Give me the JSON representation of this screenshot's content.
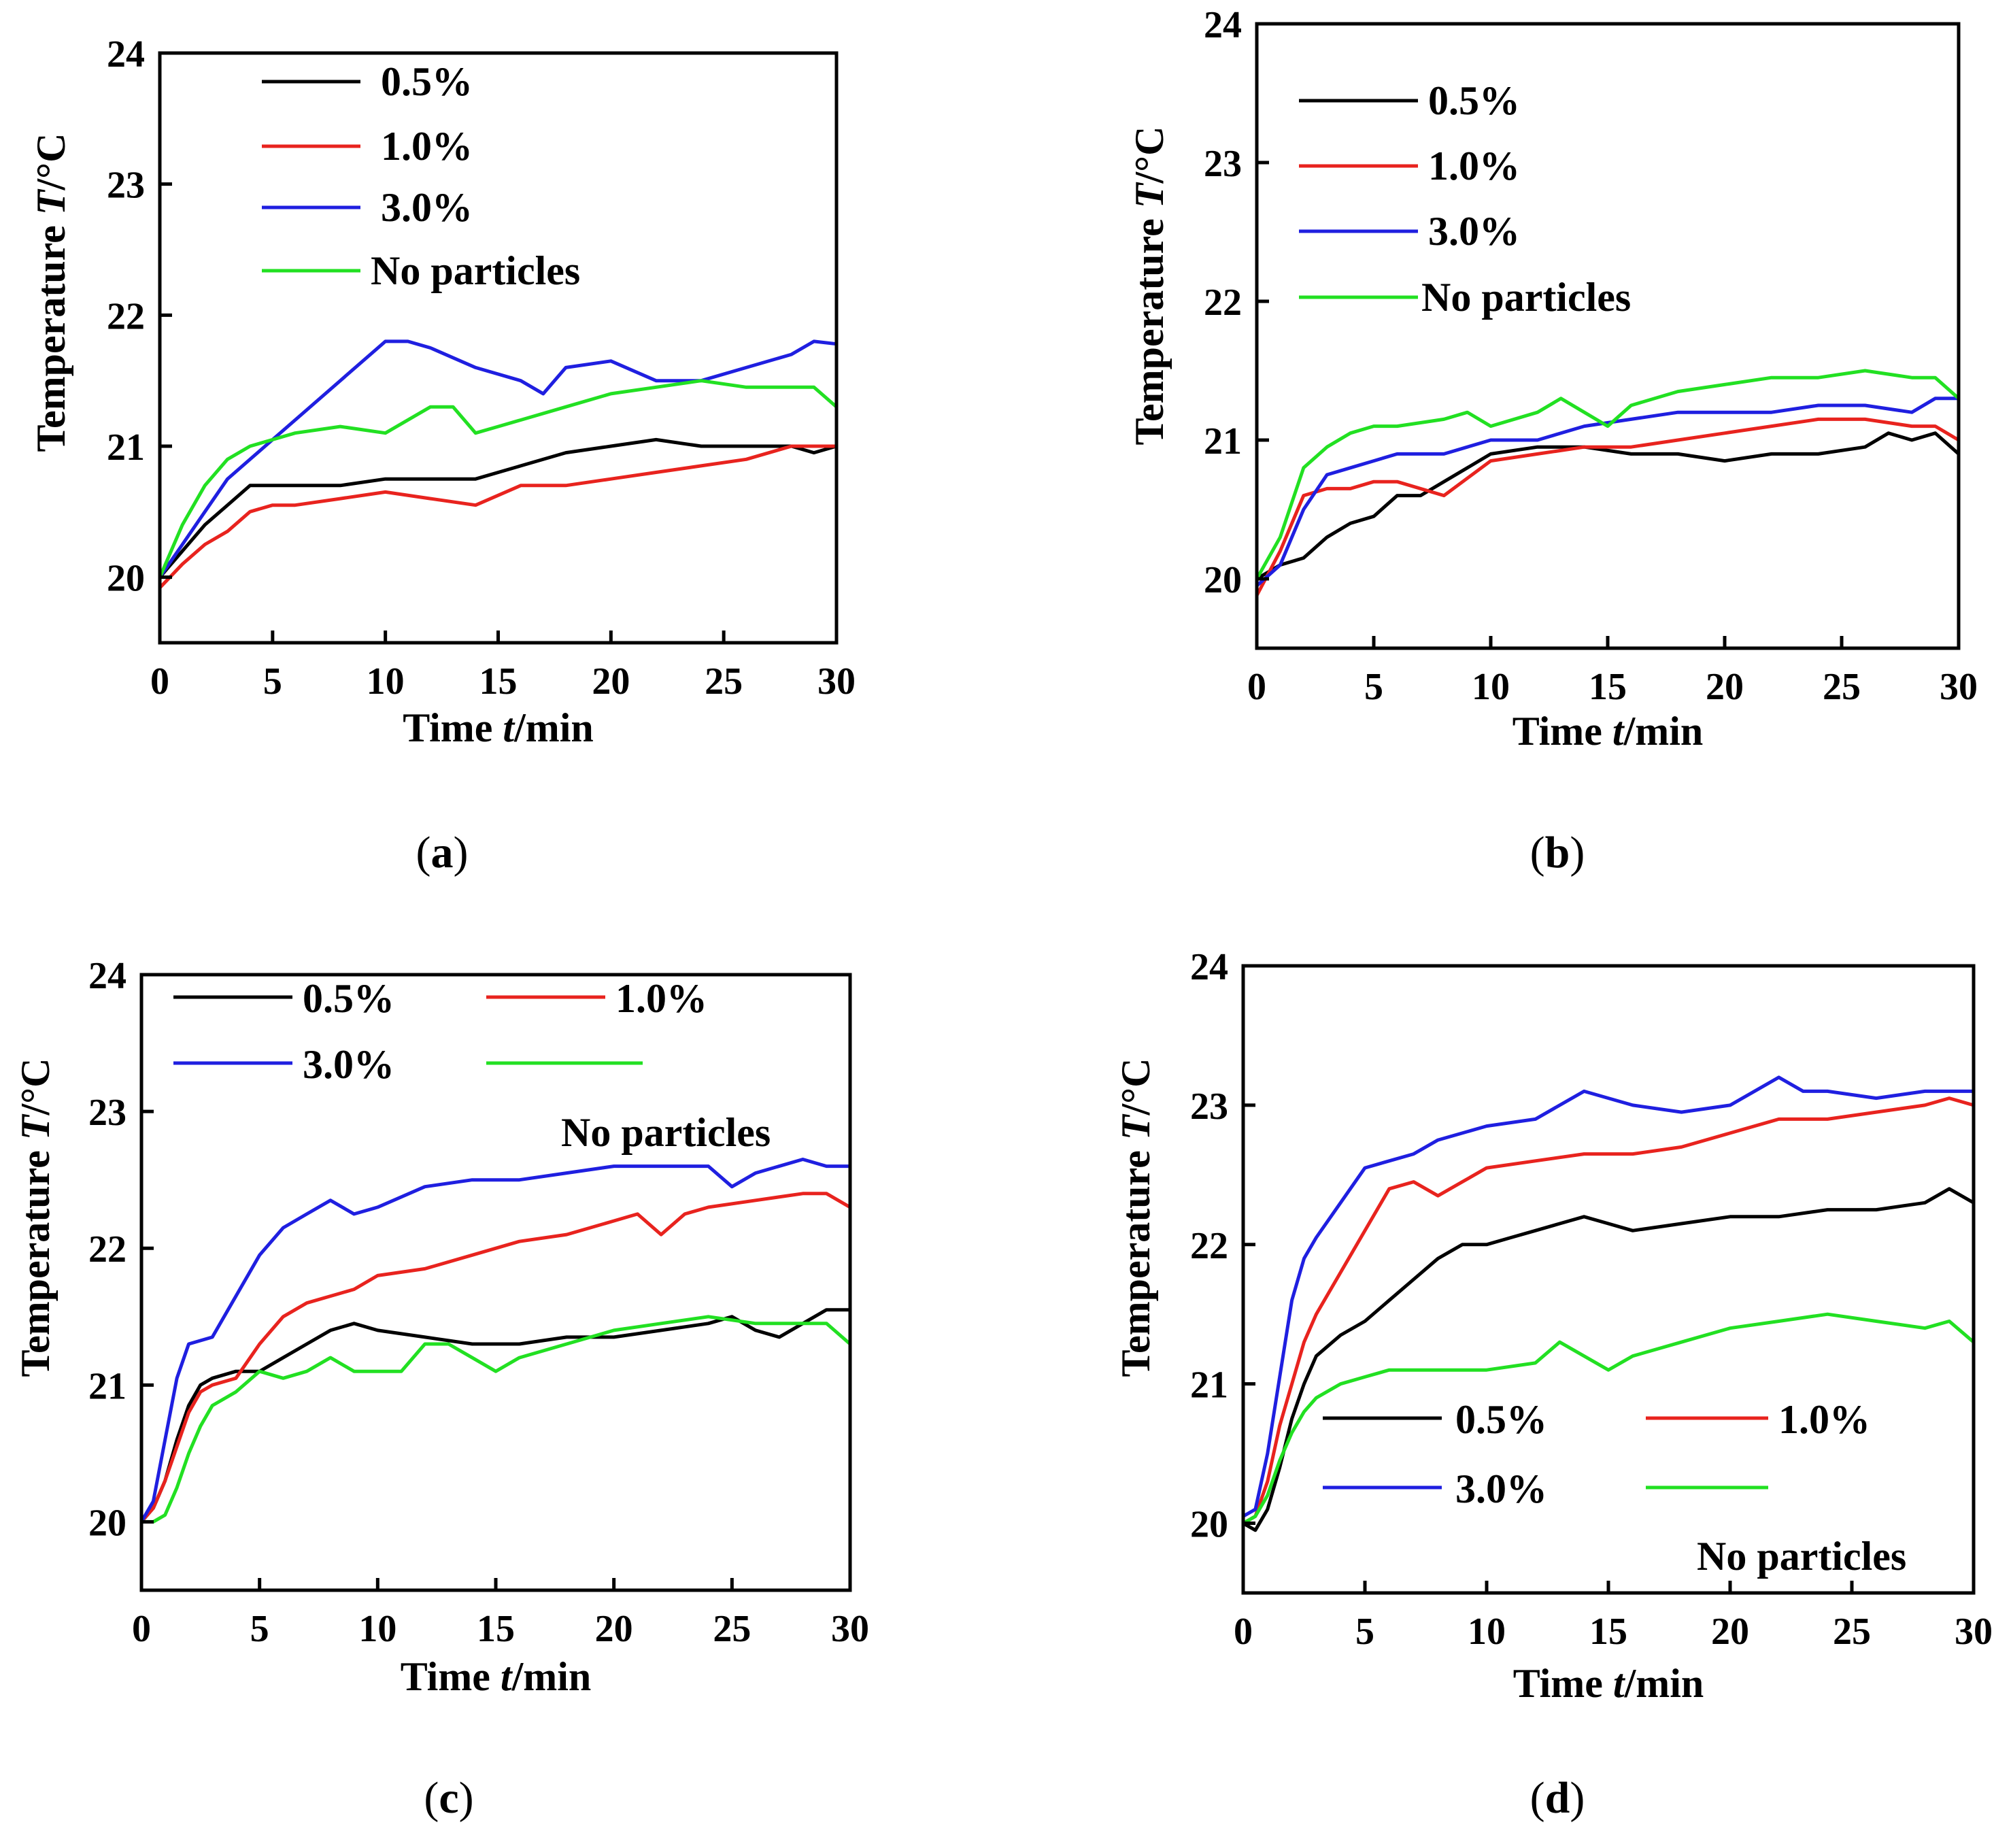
{
  "colors": {
    "0.5%": "#000000",
    "1.0%": "#e8231e",
    "3.0%": "#1f1fe0",
    "No particles": "#22e022"
  },
  "chart_data": [
    {
      "type": "line",
      "panel_label": "(a)",
      "title": "",
      "xlabel_main": "Time ",
      "xlabel_var": "t",
      "xlabel_unit": "/min",
      "ylabel_main": "Temperature ",
      "ylabel_var": "T",
      "ylabel_unit": "/°C",
      "xlim": [
        0,
        30
      ],
      "ylim": [
        19.5,
        24
      ],
      "xticks": [
        0,
        5,
        10,
        15,
        20,
        25,
        30
      ],
      "yticks": [
        20,
        21,
        22,
        23,
        24
      ],
      "legend_layout": "top-left, single column",
      "series": [
        {
          "name": "0.5%",
          "color": "#000000",
          "x": [
            0,
            1,
            2,
            3,
            4,
            5,
            6,
            8,
            10,
            12,
            14,
            16,
            18,
            20,
            22,
            24,
            26,
            28,
            29,
            30
          ],
          "y": [
            20.0,
            20.2,
            20.4,
            20.55,
            20.7,
            20.7,
            20.7,
            20.7,
            20.75,
            20.75,
            20.75,
            20.85,
            20.95,
            21.0,
            21.05,
            21.0,
            21.0,
            21.0,
            20.95,
            21.0
          ]
        },
        {
          "name": "1.0%",
          "color": "#e8231e",
          "x": [
            0,
            1,
            2,
            3,
            4,
            5,
            6,
            8,
            10,
            12,
            14,
            16,
            18,
            20,
            22,
            24,
            26,
            28,
            29,
            30
          ],
          "y": [
            19.92,
            20.1,
            20.25,
            20.35,
            20.5,
            20.55,
            20.55,
            20.6,
            20.65,
            20.6,
            20.55,
            20.7,
            20.7,
            20.75,
            20.8,
            20.85,
            20.9,
            21.0,
            21.0,
            21.0
          ]
        },
        {
          "name": "3.0%",
          "color": "#1f1fe0",
          "x": [
            0,
            1,
            2,
            3,
            4,
            5,
            6,
            8,
            10,
            11,
            12,
            14,
            16,
            17,
            18,
            20,
            22,
            24,
            26,
            28,
            29,
            30
          ],
          "y": [
            20.0,
            20.25,
            20.5,
            20.75,
            20.9,
            21.05,
            21.2,
            21.5,
            21.8,
            21.8,
            21.75,
            21.6,
            21.5,
            21.4,
            21.6,
            21.65,
            21.5,
            21.5,
            21.6,
            21.7,
            21.8,
            21.78
          ]
        },
        {
          "name": "No particles",
          "color": "#22e022",
          "x": [
            0,
            1,
            2,
            3,
            4,
            5,
            6,
            8,
            10,
            12,
            13,
            14,
            15,
            16,
            18,
            20,
            22,
            24,
            26,
            28,
            29,
            30
          ],
          "y": [
            20.0,
            20.4,
            20.7,
            20.9,
            21.0,
            21.05,
            21.1,
            21.15,
            21.1,
            21.3,
            21.3,
            21.1,
            21.15,
            21.2,
            21.3,
            21.4,
            21.45,
            21.5,
            21.45,
            21.45,
            21.45,
            21.3
          ]
        }
      ]
    },
    {
      "type": "line",
      "panel_label": "(b)",
      "title": "",
      "xlabel_main": "Time ",
      "xlabel_var": "t",
      "xlabel_unit": "/min",
      "ylabel_main": "Temperature ",
      "ylabel_var": "T",
      "ylabel_unit": "/°C",
      "xlim": [
        0,
        30
      ],
      "ylim": [
        19.5,
        24
      ],
      "xticks": [
        0,
        5,
        10,
        15,
        20,
        25,
        30
      ],
      "yticks": [
        20,
        21,
        22,
        23,
        24
      ],
      "legend_layout": "top-left, single column",
      "series": [
        {
          "name": "0.5%",
          "color": "#000000",
          "x": [
            0,
            1,
            2,
            3,
            4,
            5,
            6,
            7,
            8,
            9,
            10,
            12,
            14,
            16,
            18,
            20,
            22,
            24,
            26,
            27,
            28,
            29,
            30
          ],
          "y": [
            20.0,
            20.1,
            20.15,
            20.3,
            20.4,
            20.45,
            20.6,
            20.6,
            20.7,
            20.8,
            20.9,
            20.95,
            20.95,
            20.9,
            20.9,
            20.85,
            20.9,
            20.9,
            20.95,
            21.05,
            21.0,
            21.05,
            20.9
          ]
        },
        {
          "name": "1.0%",
          "color": "#e8231e",
          "x": [
            0,
            1,
            2,
            3,
            4,
            5,
            6,
            8,
            10,
            12,
            14,
            16,
            18,
            20,
            22,
            24,
            26,
            28,
            29,
            30
          ],
          "y": [
            19.88,
            20.2,
            20.6,
            20.65,
            20.65,
            20.7,
            20.7,
            20.6,
            20.85,
            20.9,
            20.95,
            20.95,
            21.0,
            21.05,
            21.1,
            21.15,
            21.15,
            21.1,
            21.1,
            21.0
          ]
        },
        {
          "name": "3.0%",
          "color": "#1f1fe0",
          "x": [
            0,
            1,
            2,
            3,
            4,
            5,
            6,
            8,
            9,
            10,
            12,
            14,
            16,
            18,
            20,
            22,
            24,
            26,
            28,
            29,
            30
          ],
          "y": [
            19.95,
            20.1,
            20.5,
            20.75,
            20.8,
            20.85,
            20.9,
            20.9,
            20.95,
            21.0,
            21.0,
            21.1,
            21.15,
            21.2,
            21.2,
            21.2,
            21.25,
            21.25,
            21.2,
            21.3,
            21.3
          ]
        },
        {
          "name": "No particles",
          "color": "#22e022",
          "x": [
            0,
            1,
            2,
            3,
            4,
            5,
            6,
            8,
            9,
            10,
            12,
            13,
            14,
            15,
            16,
            18,
            20,
            22,
            24,
            26,
            28,
            29,
            30
          ],
          "y": [
            20.0,
            20.3,
            20.8,
            20.95,
            21.05,
            21.1,
            21.1,
            21.15,
            21.2,
            21.1,
            21.2,
            21.3,
            21.2,
            21.1,
            21.25,
            21.35,
            21.4,
            21.45,
            21.45,
            21.5,
            21.45,
            21.45,
            21.3
          ]
        }
      ]
    },
    {
      "type": "line",
      "panel_label": "(c)",
      "title": "",
      "xlabel_main": "Time ",
      "xlabel_var": "t",
      "xlabel_unit": "/min",
      "ylabel_main": "Temperature ",
      "ylabel_var": "T",
      "ylabel_unit": "/°C",
      "xlim": [
        0,
        30
      ],
      "ylim": [
        19.5,
        24
      ],
      "xticks": [
        0,
        5,
        10,
        15,
        20,
        25,
        30
      ],
      "yticks": [
        20,
        21,
        22,
        23,
        24
      ],
      "legend_layout": "top, two columns",
      "series": [
        {
          "name": "0.5%",
          "color": "#000000",
          "x": [
            0,
            0.5,
            1,
            1.5,
            2,
            2.5,
            3,
            4,
            5,
            6,
            7,
            8,
            9,
            10,
            12,
            14,
            16,
            18,
            20,
            22,
            24,
            25,
            26,
            27,
            28,
            29,
            30
          ],
          "y": [
            20.0,
            20.1,
            20.3,
            20.6,
            20.85,
            21.0,
            21.05,
            21.1,
            21.1,
            21.2,
            21.3,
            21.4,
            21.45,
            21.4,
            21.35,
            21.3,
            21.3,
            21.35,
            21.35,
            21.4,
            21.45,
            21.5,
            21.4,
            21.35,
            21.45,
            21.55,
            21.55
          ]
        },
        {
          "name": "1.0%",
          "color": "#e8231e",
          "x": [
            0,
            0.5,
            1,
            1.5,
            2,
            2.5,
            3,
            4,
            5,
            6,
            7,
            8,
            9,
            10,
            12,
            14,
            16,
            18,
            20,
            21,
            22,
            23,
            24,
            26,
            28,
            29,
            30
          ],
          "y": [
            20.0,
            20.1,
            20.3,
            20.55,
            20.8,
            20.95,
            21.0,
            21.05,
            21.3,
            21.5,
            21.6,
            21.65,
            21.7,
            21.8,
            21.85,
            21.95,
            22.05,
            22.1,
            22.2,
            22.25,
            22.1,
            22.25,
            22.3,
            22.35,
            22.4,
            22.4,
            22.3
          ]
        },
        {
          "name": "3.0%",
          "color": "#1f1fe0",
          "x": [
            0,
            0.5,
            1,
            1.5,
            2,
            3,
            4,
            5,
            6,
            7,
            8,
            9,
            10,
            12,
            14,
            16,
            18,
            20,
            22,
            24,
            25,
            26,
            28,
            29,
            30
          ],
          "y": [
            20.0,
            20.15,
            20.6,
            21.05,
            21.3,
            21.35,
            21.65,
            21.95,
            22.15,
            22.25,
            22.35,
            22.25,
            22.3,
            22.45,
            22.5,
            22.5,
            22.55,
            22.6,
            22.6,
            22.6,
            22.45,
            22.55,
            22.65,
            22.6,
            22.6
          ]
        },
        {
          "name": "No particles",
          "color": "#22e022",
          "x": [
            0,
            0.5,
            1,
            1.5,
            2,
            2.5,
            3,
            4,
            5,
            6,
            7,
            8,
            9,
            10,
            11,
            12,
            13,
            14,
            15,
            16,
            18,
            20,
            22,
            24,
            26,
            28,
            29,
            30
          ],
          "y": [
            20.0,
            20.0,
            20.05,
            20.25,
            20.5,
            20.7,
            20.85,
            20.95,
            21.1,
            21.05,
            21.1,
            21.2,
            21.1,
            21.1,
            21.1,
            21.3,
            21.3,
            21.2,
            21.1,
            21.2,
            21.3,
            21.4,
            21.45,
            21.5,
            21.45,
            21.45,
            21.45,
            21.3
          ]
        }
      ]
    },
    {
      "type": "line",
      "panel_label": "(d)",
      "title": "",
      "xlabel_main": "Time ",
      "xlabel_var": "t",
      "xlabel_unit": "/min",
      "ylabel_main": "Temperature ",
      "ylabel_var": "T",
      "ylabel_unit": "/°C",
      "xlim": [
        0,
        30
      ],
      "ylim": [
        19.5,
        24
      ],
      "xticks": [
        0,
        5,
        10,
        15,
        20,
        25,
        30
      ],
      "yticks": [
        20,
        21,
        22,
        23,
        24
      ],
      "legend_layout": "bottom, two columns",
      "series": [
        {
          "name": "0.5%",
          "color": "#000000",
          "x": [
            0,
            0.5,
            1,
            1.5,
            2,
            2.5,
            3,
            4,
            5,
            6,
            7,
            8,
            9,
            10,
            11,
            12,
            13,
            14,
            15,
            16,
            18,
            20,
            22,
            24,
            26,
            28,
            29,
            30
          ],
          "y": [
            20.0,
            19.95,
            20.1,
            20.4,
            20.75,
            21.0,
            21.2,
            21.35,
            21.45,
            21.6,
            21.75,
            21.9,
            22.0,
            22.0,
            22.05,
            22.1,
            22.15,
            22.2,
            22.15,
            22.1,
            22.15,
            22.2,
            22.2,
            22.25,
            22.25,
            22.3,
            22.4,
            22.3
          ]
        },
        {
          "name": "1.0%",
          "color": "#e8231e",
          "x": [
            0,
            0.5,
            1,
            1.5,
            2,
            2.5,
            3,
            4,
            5,
            6,
            7,
            8,
            9,
            10,
            12,
            14,
            16,
            18,
            20,
            22,
            24,
            26,
            28,
            29,
            30
          ],
          "y": [
            20.0,
            20.05,
            20.3,
            20.7,
            21.0,
            21.3,
            21.5,
            21.8,
            22.1,
            22.4,
            22.45,
            22.35,
            22.45,
            22.55,
            22.6,
            22.65,
            22.65,
            22.7,
            22.8,
            22.9,
            22.9,
            22.95,
            23.0,
            23.05,
            23.0
          ]
        },
        {
          "name": "3.0%",
          "color": "#1f1fe0",
          "x": [
            0,
            0.5,
            1,
            1.5,
            2,
            2.5,
            3,
            4,
            5,
            6,
            7,
            8,
            9,
            10,
            12,
            14,
            16,
            18,
            20,
            22,
            23,
            24,
            26,
            28,
            29,
            30
          ],
          "y": [
            20.05,
            20.1,
            20.5,
            21.05,
            21.6,
            21.9,
            22.05,
            22.3,
            22.55,
            22.6,
            22.65,
            22.75,
            22.8,
            22.85,
            22.9,
            23.1,
            23.0,
            22.95,
            23.0,
            23.2,
            23.1,
            23.1,
            23.05,
            23.1,
            23.1,
            23.1
          ]
        },
        {
          "name": "No particles",
          "color": "#22e022",
          "x": [
            0,
            0.5,
            1,
            1.5,
            2,
            2.5,
            3,
            4,
            5,
            6,
            8,
            10,
            12,
            13,
            14,
            15,
            16,
            18,
            20,
            22,
            24,
            26,
            28,
            29,
            30
          ],
          "y": [
            20.0,
            20.05,
            20.2,
            20.45,
            20.65,
            20.8,
            20.9,
            21.0,
            21.05,
            21.1,
            21.1,
            21.1,
            21.15,
            21.3,
            21.2,
            21.1,
            21.2,
            21.3,
            21.4,
            21.45,
            21.5,
            21.45,
            21.4,
            21.45,
            21.3
          ]
        }
      ]
    }
  ]
}
